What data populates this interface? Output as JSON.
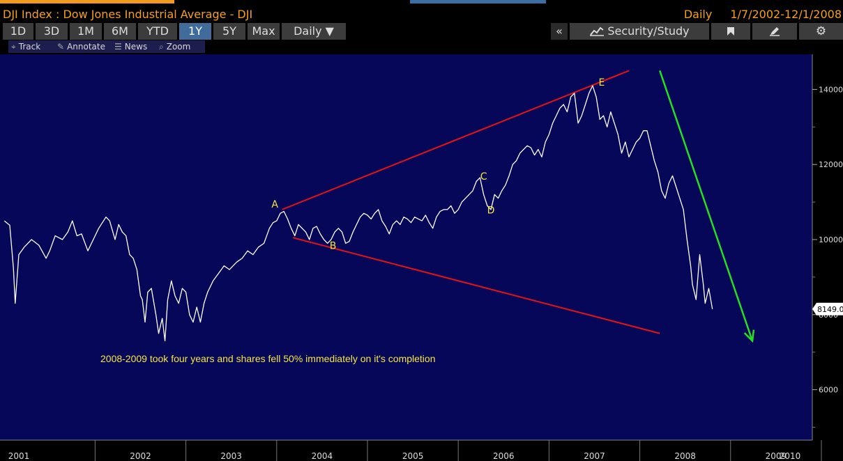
{
  "window": {
    "title": "DJI Index : Dow Jones Industrial Average - DJI",
    "frequency": "Daily",
    "date_range": "1/7/2002-12/1/2008"
  },
  "toolbar": {
    "ranges": [
      "1D",
      "3D",
      "1M",
      "6M",
      "YTD",
      "1Y",
      "5Y",
      "Max"
    ],
    "active_range": "1Y",
    "period_select": "Daily ▼",
    "collapse_label": "«",
    "security_study_label": "Security/Study",
    "icons": [
      "chart-line-icon",
      "bookmark-icon",
      "edit-icon",
      "gear-icon"
    ]
  },
  "subtoolbar": {
    "track": "Track",
    "annotate": "Annotate",
    "news": "News",
    "zoom": "Zoom"
  },
  "colors": {
    "plot_bg": "#07075a",
    "price_line": "#ffffff",
    "trend_lines": "#e81212",
    "arrow": "#22e022",
    "labels": "#f5e642"
  },
  "chart_data": {
    "type": "line",
    "title": "DJI Index : Dow Jones Industrial Average - DJI",
    "series": [
      {
        "name": "DJI",
        "points": [
          [
            2001.0,
            10500
          ],
          [
            2001.06,
            10380
          ],
          [
            2001.1,
            9250
          ],
          [
            2001.12,
            8300
          ],
          [
            2001.16,
            9600
          ],
          [
            2001.22,
            9800
          ],
          [
            2001.3,
            10000
          ],
          [
            2001.38,
            9850
          ],
          [
            2001.46,
            9500
          ],
          [
            2001.5,
            9700
          ],
          [
            2001.56,
            10100
          ],
          [
            2001.64,
            10000
          ],
          [
            2001.7,
            10200
          ],
          [
            2001.75,
            10500
          ],
          [
            2001.8,
            10100
          ],
          [
            2001.85,
            10150
          ],
          [
            2001.92,
            9700
          ],
          [
            2001.96,
            9900
          ],
          [
            2002.04,
            10300
          ],
          [
            2002.12,
            10600
          ],
          [
            2002.16,
            10500
          ],
          [
            2002.22,
            10000
          ],
          [
            2002.26,
            10400
          ],
          [
            2002.3,
            10200
          ],
          [
            2002.34,
            10100
          ],
          [
            2002.38,
            9600
          ],
          [
            2002.42,
            9500
          ],
          [
            2002.46,
            9200
          ],
          [
            2002.5,
            8500
          ],
          [
            2002.52,
            8400
          ],
          [
            2002.55,
            7800
          ],
          [
            2002.58,
            8600
          ],
          [
            2002.62,
            8700
          ],
          [
            2002.67,
            8000
          ],
          [
            2002.7,
            7500
          ],
          [
            2002.74,
            7900
          ],
          [
            2002.77,
            7300
          ],
          [
            2002.8,
            8400
          ],
          [
            2002.84,
            8900
          ],
          [
            2002.88,
            8500
          ],
          [
            2002.92,
            8300
          ],
          [
            2002.96,
            8700
          ],
          [
            2003.0,
            8600
          ],
          [
            2003.04,
            8000
          ],
          [
            2003.08,
            7800
          ],
          [
            2003.12,
            8200
          ],
          [
            2003.16,
            7800
          ],
          [
            2003.2,
            8300
          ],
          [
            2003.24,
            8600
          ],
          [
            2003.3,
            8900
          ],
          [
            2003.36,
            9100
          ],
          [
            2003.42,
            9300
          ],
          [
            2003.48,
            9200
          ],
          [
            2003.56,
            9400
          ],
          [
            2003.62,
            9500
          ],
          [
            2003.68,
            9700
          ],
          [
            2003.74,
            9600
          ],
          [
            2003.8,
            9800
          ],
          [
            2003.86,
            9900
          ],
          [
            2003.92,
            10300
          ],
          [
            2003.96,
            10450
          ],
          [
            2004.0,
            10500
          ],
          [
            2004.04,
            10700
          ],
          [
            2004.08,
            10750
          ],
          [
            2004.12,
            10550
          ],
          [
            2004.16,
            10300
          ],
          [
            2004.2,
            10100
          ],
          [
            2004.24,
            10400
          ],
          [
            2004.28,
            10300
          ],
          [
            2004.32,
            10200
          ],
          [
            2004.36,
            10000
          ],
          [
            2004.4,
            10300
          ],
          [
            2004.44,
            10350
          ],
          [
            2004.48,
            10150
          ],
          [
            2004.52,
            10000
          ],
          [
            2004.56,
            9900
          ],
          [
            2004.6,
            10000
          ],
          [
            2004.64,
            10200
          ],
          [
            2004.68,
            10300
          ],
          [
            2004.72,
            10200
          ],
          [
            2004.76,
            9900
          ],
          [
            2004.8,
            9950
          ],
          [
            2004.84,
            10200
          ],
          [
            2004.88,
            10400
          ],
          [
            2004.92,
            10600
          ],
          [
            2004.96,
            10700
          ],
          [
            2005.0,
            10650
          ],
          [
            2005.04,
            10550
          ],
          [
            2005.08,
            10700
          ],
          [
            2005.12,
            10800
          ],
          [
            2005.16,
            10500
          ],
          [
            2005.2,
            10350
          ],
          [
            2005.24,
            10150
          ],
          [
            2005.28,
            10400
          ],
          [
            2005.32,
            10500
          ],
          [
            2005.36,
            10400
          ],
          [
            2005.4,
            10600
          ],
          [
            2005.44,
            10550
          ],
          [
            2005.48,
            10450
          ],
          [
            2005.52,
            10600
          ],
          [
            2005.56,
            10550
          ],
          [
            2005.6,
            10500
          ],
          [
            2005.64,
            10650
          ],
          [
            2005.68,
            10450
          ],
          [
            2005.72,
            10300
          ],
          [
            2005.76,
            10600
          ],
          [
            2005.8,
            10750
          ],
          [
            2005.84,
            10800
          ],
          [
            2005.88,
            10800
          ],
          [
            2005.92,
            10900
          ],
          [
            2005.96,
            10700
          ],
          [
            2006.0,
            10800
          ],
          [
            2006.04,
            11000
          ],
          [
            2006.08,
            11100
          ],
          [
            2006.12,
            11200
          ],
          [
            2006.16,
            11300
          ],
          [
            2006.2,
            11550
          ],
          [
            2006.24,
            11650
          ],
          [
            2006.28,
            11200
          ],
          [
            2006.32,
            10900
          ],
          [
            2006.36,
            10800
          ],
          [
            2006.4,
            11200
          ],
          [
            2006.44,
            11100
          ],
          [
            2006.48,
            11300
          ],
          [
            2006.52,
            11450
          ],
          [
            2006.56,
            11700
          ],
          [
            2006.6,
            12000
          ],
          [
            2006.64,
            12100
          ],
          [
            2006.68,
            12300
          ],
          [
            2006.72,
            12400
          ],
          [
            2006.76,
            12500
          ],
          [
            2006.8,
            12450
          ],
          [
            2006.84,
            12250
          ],
          [
            2006.88,
            12400
          ],
          [
            2006.92,
            12200
          ],
          [
            2006.96,
            12600
          ],
          [
            2007.0,
            12800
          ],
          [
            2007.04,
            13100
          ],
          [
            2007.08,
            13300
          ],
          [
            2007.12,
            13500
          ],
          [
            2007.16,
            13600
          ],
          [
            2007.2,
            13400
          ],
          [
            2007.24,
            13800
          ],
          [
            2007.28,
            13900
          ],
          [
            2007.32,
            13100
          ],
          [
            2007.36,
            13300
          ],
          [
            2007.4,
            13600
          ],
          [
            2007.44,
            13900
          ],
          [
            2007.48,
            14100
          ],
          [
            2007.52,
            13800
          ],
          [
            2007.56,
            13200
          ],
          [
            2007.6,
            13300
          ],
          [
            2007.64,
            13000
          ],
          [
            2007.68,
            13400
          ],
          [
            2007.72,
            13100
          ],
          [
            2007.76,
            12800
          ],
          [
            2007.8,
            12300
          ],
          [
            2007.84,
            12600
          ],
          [
            2007.88,
            12200
          ],
          [
            2007.92,
            12400
          ],
          [
            2007.96,
            12600
          ],
          [
            2008.0,
            12700
          ],
          [
            2008.04,
            12900
          ],
          [
            2008.08,
            12900
          ],
          [
            2008.12,
            12500
          ],
          [
            2008.16,
            12100
          ],
          [
            2008.2,
            11800
          ],
          [
            2008.24,
            11300
          ],
          [
            2008.28,
            11100
          ],
          [
            2008.32,
            11500
          ],
          [
            2008.36,
            11700
          ],
          [
            2008.4,
            11400
          ],
          [
            2008.44,
            11100
          ],
          [
            2008.48,
            10800
          ],
          [
            2008.52,
            10000
          ],
          [
            2008.56,
            9300
          ],
          [
            2008.58,
            8800
          ],
          [
            2008.62,
            8400
          ],
          [
            2008.66,
            9600
          ],
          [
            2008.7,
            8800
          ],
          [
            2008.72,
            8300
          ],
          [
            2008.76,
            8700
          ],
          [
            2008.8,
            8149
          ]
        ]
      }
    ],
    "x_axis": {
      "ticks": [
        "2001",
        "2002",
        "2003",
        "2004",
        "2005",
        "2006",
        "2007",
        "2008",
        "2009",
        "2010"
      ],
      "range": [
        2001,
        2010.1
      ]
    },
    "y_axis": {
      "ticks": [
        6000,
        8000,
        10000,
        12000,
        14000
      ],
      "range": [
        5000,
        15000
      ],
      "last_price_label": "8149.0"
    },
    "annotations": {
      "wave_labels": [
        {
          "text": "A",
          "x": 2003.98,
          "y": 10850
        },
        {
          "text": "B",
          "x": 2004.62,
          "y": 9750
        },
        {
          "text": "C",
          "x": 2006.28,
          "y": 11600
        },
        {
          "text": "D",
          "x": 2006.36,
          "y": 10700
        },
        {
          "text": "E",
          "x": 2007.58,
          "y": 14100
        }
      ],
      "trend_lines": [
        {
          "name": "upper",
          "from": [
            2004.06,
            10800
          ],
          "to": [
            2007.88,
            14500
          ]
        },
        {
          "name": "lower",
          "from": [
            2004.18,
            10050
          ],
          "to": [
            2008.22,
            7500
          ]
        }
      ],
      "arrow": {
        "from": [
          2008.22,
          14500
        ],
        "to": [
          2009.24,
          7300
        ]
      },
      "note": "2008-2009 took four years and shares fell 50% immediately on it's completion"
    }
  }
}
